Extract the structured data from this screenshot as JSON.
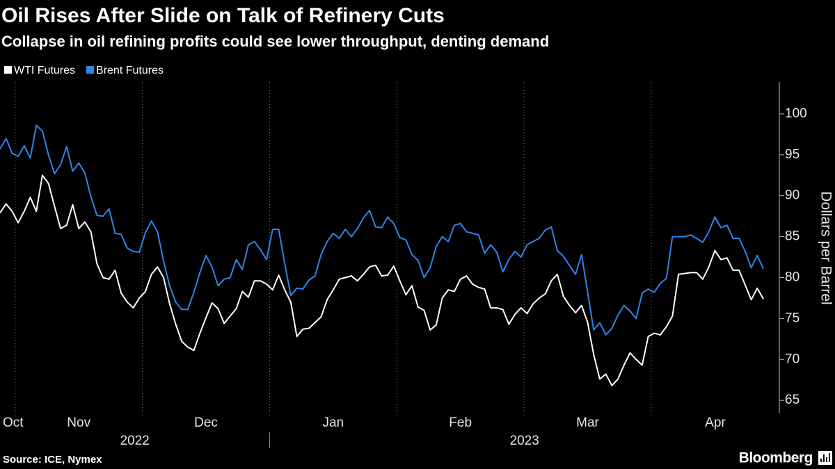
{
  "chart_data": {
    "type": "line",
    "title": "Oil Rises After Slide on Talk of Refinery Cuts",
    "subtitle": "Collapse in oil refining profits could see lower throughput, denting demand",
    "source": "Source: ICE, Nymex",
    "brand": "Bloomberg",
    "y_axis_label": "Dollars per Barrel",
    "legend": "top-left",
    "categories": [
      "Oct",
      null,
      null,
      "Nov",
      null,
      null,
      null,
      null,
      null,
      null,
      null,
      null,
      null,
      null,
      null,
      null,
      null,
      null,
      null,
      null,
      null,
      null,
      null,
      null,
      "Dec",
      null,
      null,
      null,
      null,
      null,
      null,
      null,
      null,
      null,
      null,
      null,
      null,
      null,
      null,
      null,
      null,
      null,
      null,
      null,
      null,
      "Jan",
      null,
      null,
      null,
      null,
      null,
      null,
      null,
      null,
      null,
      null,
      null,
      null,
      null,
      null,
      null,
      null,
      null,
      null,
      null,
      null,
      "Feb",
      null,
      null,
      null,
      null,
      null,
      null,
      null,
      null,
      null,
      null,
      null,
      null,
      null,
      null,
      null,
      null,
      null,
      null,
      null,
      null,
      "Mar",
      null,
      null,
      null,
      null,
      null,
      null,
      null,
      null,
      null,
      null,
      null,
      null,
      null,
      null,
      null,
      null,
      null,
      null,
      null,
      null,
      "Apr",
      null,
      null,
      null,
      null,
      null,
      null,
      null,
      null,
      null,
      null,
      null,
      null,
      null,
      null,
      null,
      null,
      null,
      null
    ],
    "x_groups": [
      "2022",
      null,
      null,
      null,
      null,
      null,
      null,
      null,
      null,
      null,
      null,
      null,
      null,
      null,
      null,
      null,
      null,
      null,
      null,
      null,
      null,
      null,
      null,
      null,
      null,
      null,
      null,
      null,
      null,
      null,
      null,
      null,
      null,
      null,
      null,
      null,
      null,
      null,
      null,
      null,
      null,
      null,
      null,
      null,
      null,
      "2023",
      null,
      null,
      null,
      null,
      null,
      null,
      null,
      null,
      null,
      null,
      null,
      null,
      null,
      null,
      null,
      null,
      null,
      null,
      null,
      null,
      null,
      null,
      null,
      null,
      null,
      null,
      null,
      null,
      null,
      null,
      null,
      null,
      null,
      null,
      null,
      null,
      null,
      null,
      null,
      null,
      null,
      null,
      null,
      null,
      null,
      null,
      null,
      null,
      null,
      null,
      null,
      null,
      null,
      null,
      null,
      null,
      null,
      null,
      null,
      null,
      null,
      null,
      null,
      null,
      null,
      null,
      null,
      null,
      null,
      null,
      null,
      null,
      null,
      null,
      null,
      null,
      null,
      null,
      null,
      null,
      null
    ],
    "series": [
      {
        "name": "WTI Futures",
        "color": "#ffffff",
        "values": [
          87.9,
          89.0,
          88.1,
          86.7,
          88.1,
          89.8,
          88.1,
          92.5,
          91.5,
          88.7,
          86.0,
          86.4,
          88.9,
          86.0,
          86.8,
          85.6,
          81.7,
          80.0,
          79.8,
          80.9,
          78.1,
          77.0,
          76.3,
          77.5,
          78.3,
          80.4,
          81.3,
          80.0,
          76.8,
          74.3,
          72.2,
          71.5,
          71.1,
          73.2,
          75.1,
          76.9,
          76.2,
          74.4,
          75.3,
          76.2,
          78.3,
          77.6,
          79.6,
          79.6,
          79.2,
          78.5,
          80.3,
          78.5,
          77.0,
          72.8,
          73.7,
          73.8,
          74.5,
          75.2,
          77.3,
          78.5,
          79.8,
          80.0,
          80.2,
          79.6,
          80.4,
          81.3,
          81.5,
          80.2,
          80.3,
          81.4,
          79.6,
          77.9,
          79.0,
          76.4,
          76.0,
          73.6,
          74.2,
          77.5,
          78.5,
          78.3,
          79.8,
          80.2,
          79.2,
          78.8,
          78.6,
          76.3,
          76.3,
          76.1,
          74.3,
          75.5,
          76.3,
          75.6,
          76.8,
          77.5,
          78.0,
          79.6,
          80.4,
          77.7,
          76.6,
          75.7,
          76.6,
          74.5,
          70.6,
          67.6,
          68.2,
          66.8,
          67.6,
          69.3,
          70.8,
          70.0,
          69.3,
          72.8,
          73.2,
          73.0,
          74.0,
          75.3,
          80.4,
          80.5,
          80.6,
          80.6,
          79.8,
          81.3,
          83.3,
          82.2,
          82.4,
          80.9,
          80.9,
          79.1,
          77.3,
          78.7,
          77.4
        ]
      },
      {
        "name": "Brent Futures",
        "color": "#2f86ea",
        "values": [
          95.7,
          97.0,
          95.2,
          94.8,
          96.1,
          94.6,
          98.6,
          97.9,
          95.0,
          92.7,
          93.8,
          96.0,
          93.0,
          94.0,
          92.8,
          89.9,
          87.6,
          87.5,
          88.4,
          85.4,
          85.3,
          83.6,
          83.2,
          83.1,
          85.5,
          86.9,
          85.6,
          82.0,
          79.0,
          77.0,
          76.1,
          76.1,
          78.2,
          80.6,
          82.7,
          81.3,
          79.0,
          79.8,
          80.0,
          82.2,
          81.0,
          84.0,
          84.4,
          83.4,
          82.2,
          85.9,
          85.9,
          81.7,
          77.8,
          78.7,
          78.6,
          79.7,
          80.2,
          82.8,
          84.4,
          85.4,
          84.8,
          85.9,
          85.0,
          86.0,
          87.3,
          88.2,
          86.2,
          86.1,
          87.4,
          86.6,
          84.9,
          84.6,
          82.8,
          82.1,
          80.0,
          81.2,
          83.8,
          85.0,
          84.4,
          86.4,
          86.6,
          85.6,
          85.4,
          85.2,
          83.0,
          84.0,
          83.1,
          80.7,
          82.2,
          83.2,
          82.5,
          84.0,
          84.4,
          84.8,
          85.8,
          86.2,
          83.3,
          82.6,
          81.5,
          80.4,
          82.8,
          78.2,
          73.6,
          74.5,
          73.0,
          73.8,
          75.4,
          76.6,
          75.9,
          75.0,
          78.1,
          78.6,
          78.2,
          79.3,
          79.9,
          85.0,
          85.0,
          85.0,
          85.2,
          84.8,
          84.3,
          85.6,
          87.4,
          86.1,
          86.4,
          84.8,
          84.8,
          83.2,
          81.2,
          82.7,
          81.1
        ]
      }
    ],
    "ylim": [
      63.4,
      103.9
    ],
    "yticks": [
      65,
      70,
      75,
      80,
      85,
      90,
      95,
      100
    ]
  }
}
